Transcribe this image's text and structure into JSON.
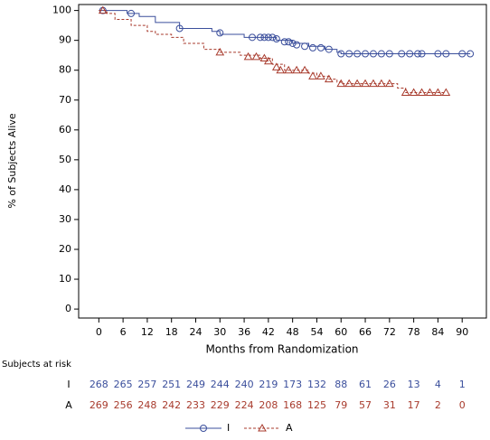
{
  "chart_data": {
    "type": "km",
    "ylabel": "% of Subjects Alive",
    "xlabel": "Months from Randomization",
    "xlim": [
      -5,
      96
    ],
    "ylim": [
      -3,
      102
    ],
    "xticks": [
      0,
      6,
      12,
      18,
      24,
      30,
      36,
      42,
      48,
      54,
      60,
      66,
      72,
      78,
      84,
      90
    ],
    "yticks": [
      0,
      10,
      20,
      30,
      40,
      50,
      60,
      70,
      80,
      90,
      100
    ],
    "series": [
      {
        "name": "I",
        "color": "#3b4f9c",
        "dashed": false,
        "marker": "circle",
        "x": [
          0,
          7,
          10,
          14,
          20,
          28,
          30,
          36,
          44,
          48,
          52,
          56,
          59,
          60,
          92
        ],
        "values": [
          100,
          99,
          98,
          96,
          94,
          93,
          92,
          91,
          90,
          89,
          88,
          87,
          86,
          85.5,
          85.5
        ],
        "censor_x": [
          1,
          8,
          20,
          30,
          38,
          40,
          41,
          42,
          43,
          44,
          46,
          47,
          48,
          49,
          51,
          53,
          55,
          57,
          60,
          62,
          64,
          66,
          68,
          70,
          72,
          75,
          77,
          79,
          80,
          84,
          86,
          90,
          92
        ],
        "censor_values": [
          100,
          99,
          94,
          92.5,
          91,
          91,
          91,
          91,
          91,
          90.5,
          89.5,
          89.5,
          89,
          88.5,
          88,
          87.5,
          87.5,
          87,
          85.5,
          85.5,
          85.5,
          85.5,
          85.5,
          85.5,
          85.5,
          85.5,
          85.5,
          85.5,
          85.5,
          85.5,
          85.5,
          85.5,
          85.5
        ]
      },
      {
        "name": "A",
        "color": "#a83b2d",
        "dashed": true,
        "marker": "triangle",
        "x": [
          0,
          2,
          4,
          8,
          12,
          14,
          18,
          21,
          26,
          30,
          35,
          40,
          43,
          46,
          52,
          54,
          57,
          59,
          60,
          74,
          76,
          86
        ],
        "values": [
          100,
          99,
          97,
          95,
          93,
          92,
          91,
          89,
          87,
          86,
          85,
          84,
          82,
          80,
          79,
          78,
          77,
          76,
          75.5,
          74,
          72.5,
          72.5
        ],
        "censor_x": [
          1,
          30,
          37,
          39,
          41,
          42,
          44,
          45,
          47,
          49,
          51,
          53,
          55,
          57,
          60,
          62,
          64,
          66,
          68,
          70,
          72,
          76,
          78,
          80,
          82,
          84,
          86
        ],
        "censor_values": [
          100,
          86,
          84.5,
          84.5,
          84,
          83,
          81,
          80,
          80,
          80,
          80,
          78,
          78,
          77,
          75.5,
          75.5,
          75.5,
          75.5,
          75.5,
          75.5,
          75.5,
          72.5,
          72.5,
          72.5,
          72.5,
          72.5,
          72.5
        ]
      }
    ],
    "risk_table": {
      "title": "Subjects at risk",
      "rows": [
        {
          "name": "I",
          "values": [
            268,
            265,
            257,
            251,
            249,
            244,
            240,
            219,
            173,
            132,
            88,
            61,
            26,
            13,
            4,
            1
          ]
        },
        {
          "name": "A",
          "values": [
            269,
            256,
            248,
            242,
            233,
            229,
            224,
            208,
            168,
            125,
            79,
            57,
            31,
            17,
            2,
            0
          ]
        }
      ]
    }
  }
}
